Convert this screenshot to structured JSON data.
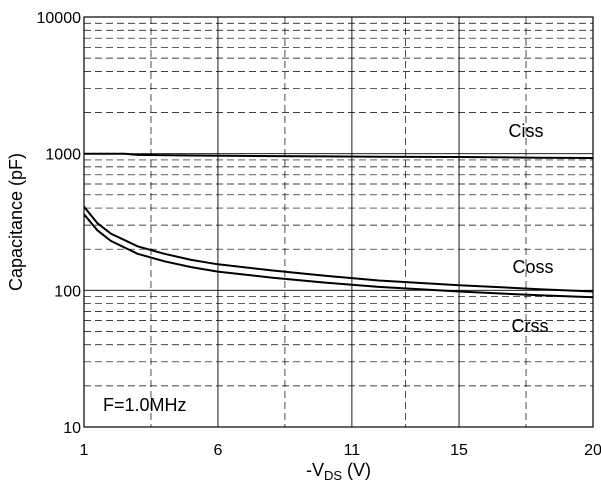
{
  "chart_data": {
    "type": "line",
    "title": "",
    "xlabel": {
      "main": "-V",
      "subscript": "DS",
      "unit": " (V)"
    },
    "ylabel": "Capacitance (pF)",
    "xlim": [
      1,
      20
    ],
    "ylim": [
      10,
      10000
    ],
    "y_scale": "log",
    "x_ticks": [
      {
        "value": 1,
        "label": "1"
      },
      {
        "value": 6,
        "label": "6"
      },
      {
        "value": 11,
        "label": "11"
      },
      {
        "value": 15,
        "label": "15"
      },
      {
        "value": 20,
        "label": "20"
      }
    ],
    "y_ticks": [
      {
        "value": 10,
        "label": "10"
      },
      {
        "value": 100,
        "label": "100"
      },
      {
        "value": 1000,
        "label": "1000"
      },
      {
        "value": 10000,
        "label": "10000"
      }
    ],
    "grid": true,
    "annotation": "F=1.0MHz",
    "series": [
      {
        "name": "Ciss",
        "x": [
          1,
          2,
          2.5,
          3,
          5,
          8,
          10,
          12,
          15,
          18,
          20
        ],
        "y": [
          1000,
          1000,
          1000,
          980,
          970,
          960,
          955,
          950,
          945,
          935,
          930
        ]
      },
      {
        "name": "Coss",
        "x": [
          1,
          1.5,
          2,
          3,
          4,
          5,
          6,
          8,
          10,
          12,
          15,
          18,
          20
        ],
        "y": [
          410,
          310,
          260,
          210,
          185,
          167,
          155,
          140,
          128,
          118,
          109,
          102,
          98
        ]
      },
      {
        "name": "Crss",
        "x": [
          1,
          1.5,
          2,
          3,
          4,
          5,
          6,
          8,
          10,
          12,
          15,
          18,
          20
        ],
        "y": [
          360,
          275,
          230,
          185,
          163,
          148,
          137,
          124,
          114,
          106,
          98,
          92,
          89
        ]
      }
    ],
    "series_labels": [
      {
        "name": "Ciss",
        "text": "Ciss"
      },
      {
        "name": "Coss",
        "text": "Coss"
      },
      {
        "name": "Crss",
        "text": "Crss"
      }
    ]
  }
}
